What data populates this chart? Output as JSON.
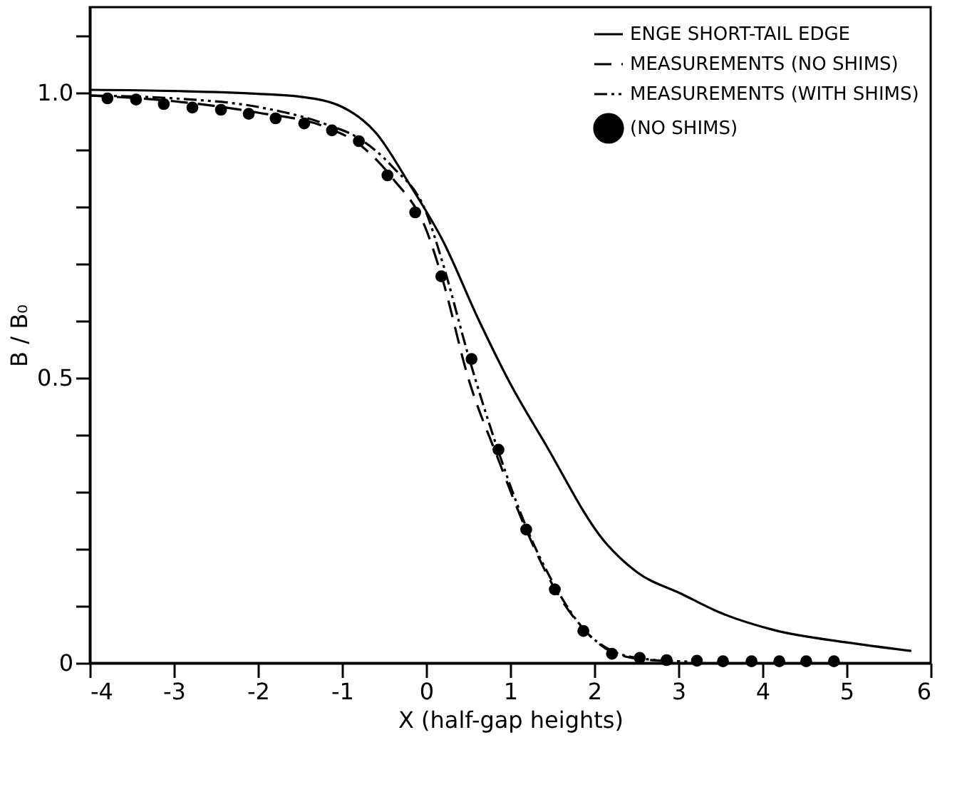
{
  "chart_data": {
    "type": "line",
    "xlabel": "X (half-gap heights)",
    "ylabel": "B / B₀",
    "xlim": [
      -4,
      6
    ],
    "xticks": [
      -4,
      -3,
      -2,
      -1,
      0,
      1,
      2,
      3,
      4,
      5,
      6
    ],
    "ylim": [
      0,
      1.15
    ],
    "yticks": [
      0,
      {
        "value": 0.1,
        "label": null
      },
      {
        "value": 0.2,
        "label": null
      },
      {
        "value": 0.3,
        "label": null
      },
      {
        "value": 0.4,
        "label": null
      },
      0.5,
      {
        "value": 0.6,
        "label": null
      },
      {
        "value": 0.7,
        "label": null
      },
      {
        "value": 0.8,
        "label": null
      },
      {
        "value": 0.9,
        "label": null
      },
      {
        "value": 1.0,
        "label": "1.0"
      },
      {
        "value": 1.1,
        "label": null
      }
    ],
    "grid": false,
    "legend": "top right",
    "series": [
      {
        "name": "ENGE SHORT-TAIL EDGE",
        "line_style": "solid",
        "color": "#000000",
        "x": [
          -4,
          -3,
          -2,
          -1.5,
          -1,
          -0.6,
          -0.2,
          0.2,
          0.63,
          1.0,
          1.41,
          2.11,
          2.5,
          3.04,
          3.5,
          4.13,
          5,
          5.77
        ],
        "values": [
          1.005,
          1.003,
          0.998,
          0.993,
          0.975,
          0.93,
          0.84,
          0.74,
          0.6,
          0.49,
          0.386,
          0.215,
          0.16,
          0.121,
          0.088,
          0.058,
          0.036,
          0.021
        ]
      },
      {
        "name": "MEASUREMENTS (NO SHIMS)",
        "line_style": "dashed",
        "color": "#000000",
        "x": [
          -4,
          -3,
          -2,
          -1.2,
          -0.8,
          -0.4,
          0,
          0.2,
          0.5,
          0.85,
          1.2,
          1.55,
          1.9,
          2.2,
          2.6,
          3.0
        ],
        "values": [
          0.995,
          0.985,
          0.965,
          0.94,
          0.91,
          0.85,
          0.76,
          0.67,
          0.5,
          0.36,
          0.23,
          0.125,
          0.055,
          0.02,
          0.006,
          0.003
        ]
      },
      {
        "name": "MEASUREMENTS (WITH SHIMS)",
        "line_style": "dotted",
        "color": "#000000",
        "x": [
          -4,
          -3,
          -2,
          -1.2,
          -0.8,
          -0.4,
          0,
          0.2,
          0.5,
          0.85,
          1.2,
          1.55,
          1.9,
          2.2,
          2.6,
          3.0,
          3.2
        ],
        "values": [
          0.995,
          0.99,
          0.975,
          0.945,
          0.92,
          0.87,
          0.79,
          0.7,
          0.54,
          0.375,
          0.235,
          0.13,
          0.055,
          0.022,
          0.007,
          0.003,
          0.002
        ]
      },
      {
        "name": "(NO SHIMS)",
        "type": "scatter",
        "marker": "circle",
        "color": "#000000",
        "x": [
          -3.79,
          -3.45,
          -3.12,
          -2.78,
          -2.44,
          -2.11,
          -1.79,
          -1.45,
          -1.12,
          -0.8,
          -0.46,
          -0.13,
          0.18,
          0.54,
          0.86,
          1.19,
          1.53,
          1.87,
          2.21,
          2.54,
          2.86,
          3.22,
          3.53,
          3.87,
          4.2,
          4.52,
          4.85
        ],
        "values": [
          0.99,
          0.988,
          0.98,
          0.974,
          0.97,
          0.963,
          0.955,
          0.946,
          0.934,
          0.915,
          0.855,
          0.79,
          0.678,
          0.533,
          0.374,
          0.234,
          0.129,
          0.056,
          0.016,
          0.009,
          0.005,
          0.004,
          0.003,
          0.003,
          0.003,
          0.003,
          0.003
        ]
      }
    ]
  }
}
